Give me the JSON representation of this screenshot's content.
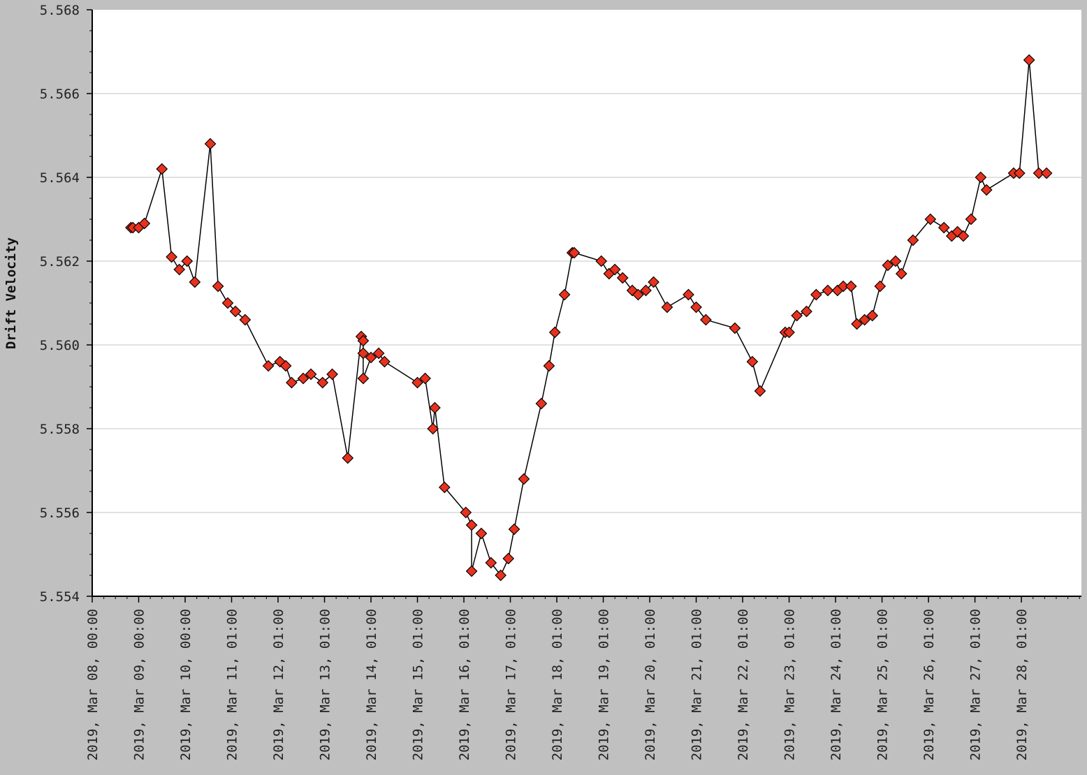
{
  "chart_data": {
    "type": "line",
    "title": "",
    "xlabel": "",
    "ylabel": "Drift Velocity",
    "ylim": [
      5.554,
      5.568
    ],
    "y_ticks": [
      "5.554",
      "5.556",
      "5.558",
      "5.560",
      "5.562",
      "5.564",
      "5.566",
      "5.568"
    ],
    "x_range_days": [
      "2019-03-08T00:00",
      "2019-03-29T07:00"
    ],
    "x_tick_labels": [
      "2019, Mar 08, 00:00",
      "2019, Mar 09, 00:00",
      "2019, Mar 10, 00:00",
      "2019, Mar 11, 01:00",
      "2019, Mar 12, 01:00",
      "2019, Mar 13, 01:00",
      "2019, Mar 14, 01:00",
      "2019, Mar 15, 01:00",
      "2019, Mar 16, 01:00",
      "2019, Mar 17, 01:00",
      "2019, Mar 18, 01:00",
      "2019, Mar 19, 01:00",
      "2019, Mar 20, 01:00",
      "2019, Mar 21, 01:00",
      "2019, Mar 22, 01:00",
      "2019, Mar 23, 01:00",
      "2019, Mar 24, 01:00",
      "2019, Mar 25, 01:00",
      "2019, Mar 26, 01:00",
      "2019, Mar 27, 01:00",
      "2019, Mar 28, 01:00"
    ],
    "grid": true,
    "legend": "none",
    "colors": {
      "background": "#c0c0c0",
      "plot": "#ffffff",
      "grid": "#d8d8d8",
      "line": "#000000",
      "marker": "#e8321e"
    },
    "series": [
      {
        "x": [
          "2019-03-08T20:00",
          "2019-03-08T21:00",
          "2019-03-09T00:00",
          "2019-03-09T03:00",
          "2019-03-09T12:00",
          "2019-03-09T17:00",
          "2019-03-09T21:00",
          "2019-03-10T01:00",
          "2019-03-10T05:00",
          "2019-03-10T13:00",
          "2019-03-10T17:00",
          "2019-03-10T22:00",
          "2019-03-11T02:00",
          "2019-03-11T07:00",
          "2019-03-11T19:00",
          "2019-03-12T01:00",
          "2019-03-12T04:00",
          "2019-03-12T07:00",
          "2019-03-12T13:00",
          "2019-03-12T17:00",
          "2019-03-12T23:00",
          "2019-03-13T04:00",
          "2019-03-13T12:00",
          "2019-03-13T19:00",
          "2019-03-13T20:00",
          "2019-03-13T20:00",
          "2019-03-13T20:00",
          "2019-03-14T00:00",
          "2019-03-14T04:00",
          "2019-03-14T07:00",
          "2019-03-15T00:00",
          "2019-03-15T04:00",
          "2019-03-15T08:00",
          "2019-03-15T09:00",
          "2019-03-15T14:00",
          "2019-03-16T01:00",
          "2019-03-16T04:00",
          "2019-03-16T04:00",
          "2019-03-16T09:00",
          "2019-03-16T14:00",
          "2019-03-16T19:00",
          "2019-03-16T23:00",
          "2019-03-17T02:00",
          "2019-03-17T07:00",
          "2019-03-17T16:00",
          "2019-03-17T20:00",
          "2019-03-17T23:00",
          "2019-03-18T04:00",
          "2019-03-18T08:00",
          "2019-03-18T09:00",
          "2019-03-18T23:00",
          "2019-03-19T03:00",
          "2019-03-19T06:00",
          "2019-03-19T10:00",
          "2019-03-19T15:00",
          "2019-03-19T18:00",
          "2019-03-19T22:00",
          "2019-03-20T02:00",
          "2019-03-20T09:00",
          "2019-03-20T20:00",
          "2019-03-21T00:00",
          "2019-03-21T05:00",
          "2019-03-21T20:00",
          "2019-03-22T05:00",
          "2019-03-22T09:00",
          "2019-03-22T22:00",
          "2019-03-23T00:00",
          "2019-03-23T04:00",
          "2019-03-23T09:00",
          "2019-03-23T14:00",
          "2019-03-23T20:00",
          "2019-03-24T01:00",
          "2019-03-24T04:00",
          "2019-03-24T08:00",
          "2019-03-24T11:00",
          "2019-03-24T15:00",
          "2019-03-24T19:00",
          "2019-03-24T23:00",
          "2019-03-25T03:00",
          "2019-03-25T07:00",
          "2019-03-25T10:00",
          "2019-03-25T16:00",
          "2019-03-26T01:00",
          "2019-03-26T08:00",
          "2019-03-26T12:00",
          "2019-03-26T15:00",
          "2019-03-26T18:00",
          "2019-03-26T22:00",
          "2019-03-27T03:00",
          "2019-03-27T06:00",
          "2019-03-27T20:00",
          "2019-03-27T23:00",
          "2019-03-28T04:00",
          "2019-03-28T09:00",
          "2019-03-28T13:00"
        ],
        "y": [
          5.5628,
          5.5628,
          5.5628,
          5.5629,
          5.5642,
          5.5621,
          5.5618,
          5.562,
          5.5615,
          5.5648,
          5.5614,
          5.561,
          5.5608,
          5.5606,
          5.5595,
          5.5596,
          5.5595,
          5.5591,
          5.5592,
          5.5593,
          5.5591,
          5.5593,
          5.5573,
          5.5602,
          5.5601,
          5.5598,
          5.5592,
          5.5597,
          5.5598,
          5.5596,
          5.5591,
          5.5592,
          5.558,
          5.5585,
          5.5566,
          5.556,
          5.5557,
          5.5546,
          5.5555,
          5.5548,
          5.5545,
          5.5549,
          5.5556,
          5.5568,
          5.5586,
          5.5595,
          5.5603,
          5.5612,
          5.5622,
          5.5622,
          5.562,
          5.5617,
          5.5618,
          5.5616,
          5.5613,
          5.5612,
          5.5613,
          5.5615,
          5.5609,
          5.5612,
          5.5609,
          5.5606,
          5.5604,
          5.5596,
          5.5589,
          5.5603,
          5.5603,
          5.5607,
          5.5608,
          5.5612,
          5.5613,
          5.5613,
          5.5614,
          5.5614,
          5.5605,
          5.5606,
          5.5607,
          5.5614,
          5.5619,
          5.562,
          5.5617,
          5.5625,
          5.563,
          5.5628,
          5.5626,
          5.5627,
          5.5626,
          5.563,
          5.564,
          5.5637,
          5.5641,
          5.5641,
          5.5668,
          5.5641,
          5.5641
        ]
      }
    ]
  }
}
